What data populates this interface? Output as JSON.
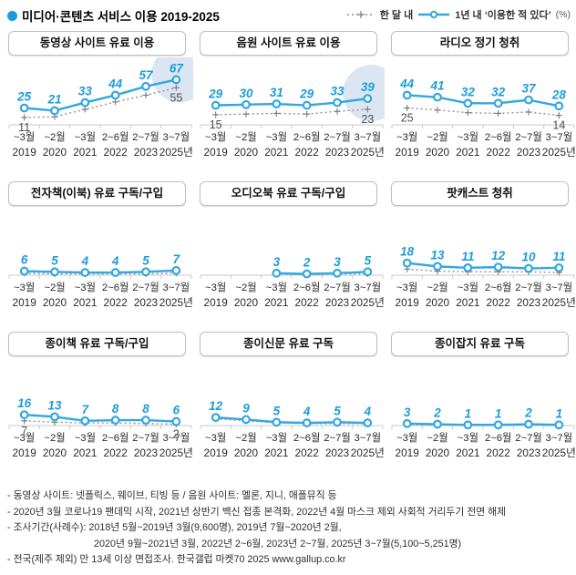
{
  "header": {
    "title": "미디어·콘텐츠 서비스 이용 2019-2025",
    "legend": {
      "monthly_label": "한 달 내",
      "yearly_label": "1년 내  ‘이용한 적 있다’",
      "unit_label": "(%)"
    }
  },
  "colors": {
    "bullet": "#1d9bd8",
    "blue_line": "#33a7df",
    "blue_label": "#1e9cd9",
    "gray_line": "#909090",
    "gray_marker": "#7a7a7a",
    "gray_label": "#4d4d4d",
    "axis": "#c8c8c8",
    "tick_text": "#2a2a2a",
    "highlight": "#dbe6f2"
  },
  "chart_data": {
    "type": "line",
    "unit": "%",
    "x_months": [
      "~3월",
      "~2월",
      "~3월",
      "2~6월",
      "2~7월",
      "3~7월"
    ],
    "x_years": [
      "2019",
      "2020",
      "2021",
      "2022",
      "2023",
      "2025년"
    ],
    "series_names": {
      "monthly": "한 달 내",
      "yearly": "1년 내 이용한 적 있다"
    },
    "panels": [
      {
        "title": "동영상 사이트 유료 이용",
        "yearly": [
          25,
          21,
          33,
          44,
          57,
          67
        ],
        "monthly": [
          11,
          12,
          23,
          34,
          44,
          55
        ],
        "monthly_endpoint_labels": [
          11,
          55
        ],
        "highlight_last": true
      },
      {
        "title": "음원 사이트 유료 이용",
        "yearly": [
          29,
          30,
          31,
          29,
          33,
          39
        ],
        "monthly": [
          15,
          16,
          17,
          16,
          20,
          23
        ],
        "monthly_endpoint_labels": [
          15,
          23
        ],
        "highlight_last": true
      },
      {
        "title": "라디오 정기 청취",
        "yearly": [
          44,
          41,
          32,
          32,
          37,
          28
        ],
        "monthly": [
          25,
          22,
          18,
          17,
          19,
          14
        ],
        "monthly_endpoint_labels": [
          25,
          14
        ],
        "highlight_last": false
      },
      {
        "title": "전자책(이북) 유료 구독/구입",
        "yearly": [
          6,
          5,
          4,
          4,
          5,
          7
        ],
        "monthly": [
          3,
          2,
          2,
          2,
          2,
          3
        ],
        "monthly_endpoint_labels": null,
        "highlight_last": false
      },
      {
        "title": "오디오북 유료 구독/구입",
        "yearly": [
          null,
          null,
          3,
          2,
          3,
          5
        ],
        "monthly": [
          null,
          null,
          2,
          1,
          2,
          2
        ],
        "monthly_endpoint_labels": null,
        "highlight_last": false
      },
      {
        "title": "팟캐스트 청취",
        "yearly": [
          18,
          13,
          11,
          12,
          10,
          11
        ],
        "monthly": [
          9,
          6,
          5,
          5,
          5,
          4
        ],
        "monthly_endpoint_labels": null,
        "highlight_last": false
      },
      {
        "title": "종이책 유료 구독/구입",
        "yearly": [
          16,
          13,
          7,
          8,
          8,
          6
        ],
        "monthly": [
          7,
          5,
          4,
          4,
          3,
          2
        ],
        "monthly_endpoint_labels": [
          7,
          2
        ],
        "highlight_last": false
      },
      {
        "title": "종이신문 유료 구독",
        "yearly": [
          12,
          9,
          5,
          4,
          5,
          4
        ],
        "monthly": [
          10,
          7,
          4,
          3,
          3,
          3
        ],
        "monthly_endpoint_labels": null,
        "highlight_last": false
      },
      {
        "title": "종이잡지 유료 구독",
        "yearly": [
          3,
          2,
          1,
          1,
          2,
          1
        ],
        "monthly": [
          2,
          1,
          1,
          1,
          1,
          1
        ],
        "monthly_endpoint_labels": null,
        "highlight_last": false
      }
    ]
  },
  "footnotes": [
    "- 동영상 사이트: 넷플릭스, 웨이브, 티빙 등 / 음원 사이트: 멜론, 지니, 애플뮤직 등",
    "- 2020년 3월 코로나19 팬데믹 시작, 2021년 상반기 백신 접종 본격화, 2022년 4월 마스크 제외 사회적 거리두기 전면 해제",
    "- 조사기간(사례수):  2018년 5월~2019년 3월(9,600명), 2019년 7월~2020년 2월,",
    "2020년 9월~2021년 3월, 2022년 2~6월, 2023년 2~7월, 2025년 3~7월(5,100~5,251명)",
    "- 전국(제주 제외) 만 13세 이상 면접조사. 한국갤럽 마켓70 2025 www.gallup.co.kr"
  ]
}
